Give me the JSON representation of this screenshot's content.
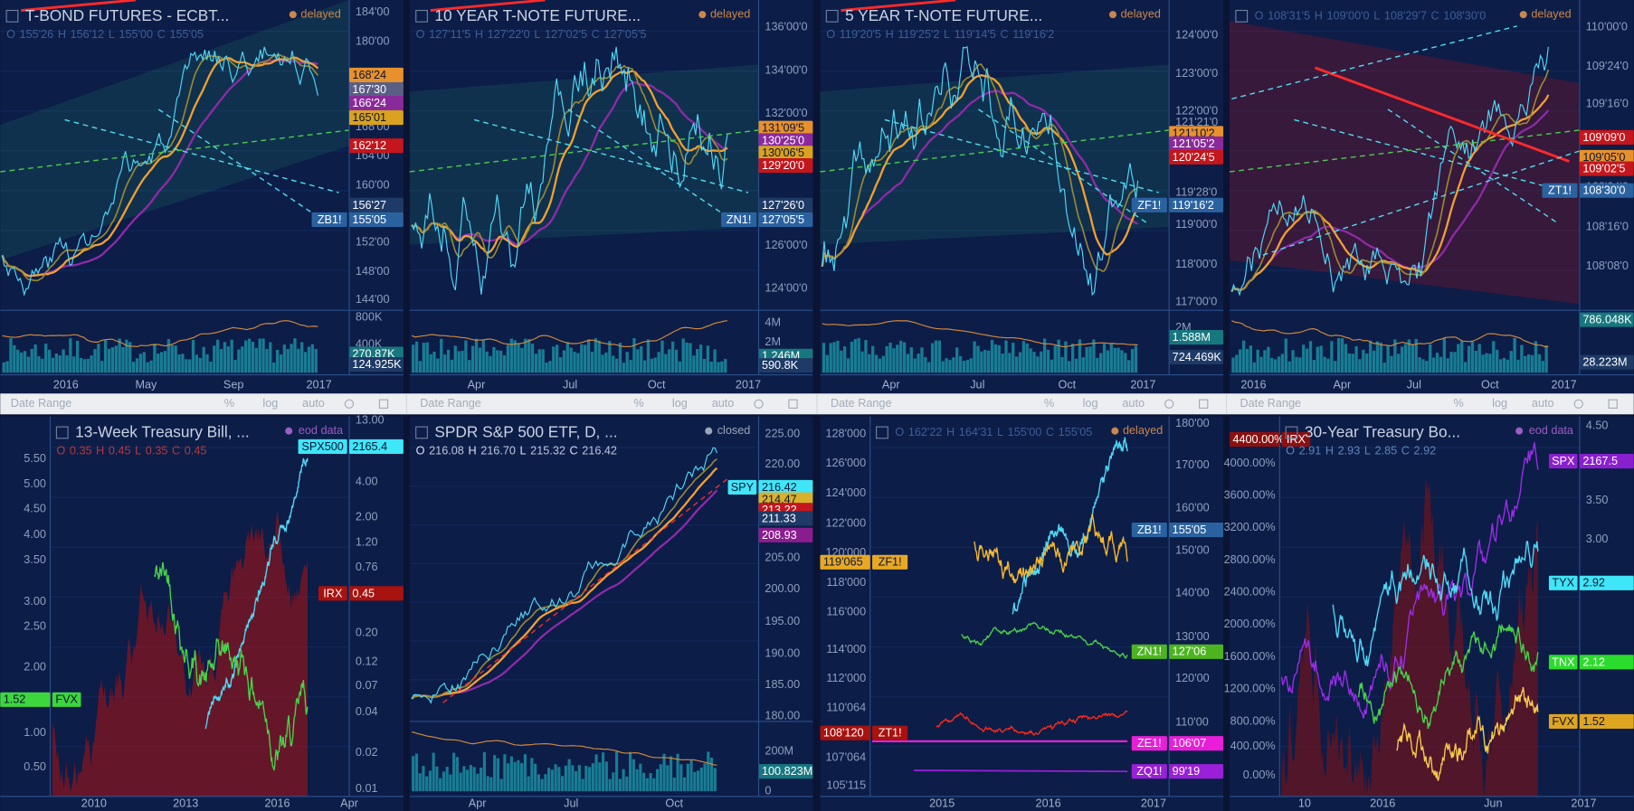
{
  "toolbar": [
    "Date Range",
    "%",
    "log",
    "auto"
  ],
  "panels": [
    {
      "title": "T-BOND FUTURES - ECBT...",
      "status": "delayed",
      "ohlc": [
        "O",
        "155'26",
        "H",
        "156'12",
        "L",
        "155'00",
        "C",
        "155'05"
      ],
      "ticks": [
        "184'00",
        "180'00",
        "168'00",
        "164'00",
        "160'00",
        "156'00",
        "152'00",
        "148'00",
        "144'00"
      ],
      "labels": [
        {
          "text": "168'24",
          "color": "#e8912c"
        },
        {
          "text": "167'30",
          "color": "#5b5f86"
        },
        {
          "text": "166'24",
          "color": "#8a2a9a"
        },
        {
          "text": "165'01",
          "color": "#d9a21f"
        },
        {
          "text": "162'12",
          "color": "#c4161c"
        },
        {
          "text": "156'27",
          "color": "#1e3a66"
        },
        {
          "sym": "ZB1!",
          "text": "155'05",
          "color": "#2a62a0"
        }
      ],
      "vol_ticks": [
        "800K",
        "400K"
      ],
      "vol_labels": [
        "270.87K",
        "124.925K"
      ],
      "x_labels": [
        "2016",
        "May",
        "Sep",
        "2017"
      ]
    },
    {
      "title": "10 YEAR T-NOTE FUTURE...",
      "status": "delayed",
      "ohlc": [
        "O",
        "127'11'5",
        "H",
        "127'22'0",
        "L",
        "127'02'5",
        "C",
        "127'05'5"
      ],
      "ticks": [
        "136'00'0",
        "134'00'0",
        "132'00'0",
        "126'00'0",
        "124'00'0"
      ],
      "labels": [
        {
          "text": "131'09'5",
          "color": "#e8912c"
        },
        {
          "text": "130'25'0",
          "color": "#8a2a9a"
        },
        {
          "text": "130'06'5",
          "color": "#d9a21f"
        },
        {
          "text": "129'20'0",
          "color": "#c4161c"
        },
        {
          "text": "127'26'0",
          "color": "#1e3a66"
        },
        {
          "sym": "ZN1!",
          "text": "127'05'5",
          "color": "#2a62a0"
        }
      ],
      "vol_ticks": [
        "4M",
        "2M"
      ],
      "vol_labels": [
        "1.246M",
        "590.8K"
      ],
      "x_labels": [
        "Apr",
        "Jul",
        "Oct",
        "2017"
      ]
    },
    {
      "title": "5 YEAR T-NOTE FUTURE...",
      "status": "delayed",
      "ohlc": [
        "O",
        "119'20'5",
        "H",
        "119'25'2",
        "L",
        "119'14'5",
        "C",
        "119'16'2"
      ],
      "ticks": [
        "124'00'0",
        "123'00'0",
        "122'00'0",
        "121'21'0",
        "119'28'0",
        "119'00'0",
        "118'00'0",
        "117'00'0"
      ],
      "labels": [
        {
          "text": "121'10'2",
          "color": "#e8912c"
        },
        {
          "text": "121'05'2",
          "color": "#8a2a9a"
        },
        {
          "text": "120'24'5",
          "color": "#c4161c"
        },
        {
          "sym": "ZF1!",
          "text": "119'16'2",
          "color": "#2a62a0"
        }
      ],
      "vol_ticks": [
        "2M"
      ],
      "vol_labels": [
        "1.588M",
        "724.469K"
      ],
      "x_labels": [
        "Apr",
        "Jul",
        "Oct",
        "2017"
      ]
    },
    {
      "status": "delayed",
      "ohlc": [
        "O",
        "108'31'5",
        "H",
        "109'00'0",
        "L",
        "108'29'7",
        "C",
        "108'30'0"
      ],
      "ticks": [
        "110'00'0",
        "109'24'0",
        "109'16'0",
        "108'24'0",
        "108'16'0",
        "108'08'0"
      ],
      "labels": [
        {
          "text": "109'09'0",
          "color": "#c4161c"
        },
        {
          "text": "109'05'0",
          "color": "#e8912c"
        },
        {
          "text": "109'02'5",
          "color": "#c4161c"
        },
        {
          "sym": "ZT1!",
          "text": "108'30'0",
          "color": "#2a62a0"
        }
      ],
      "vol_ticks": [],
      "vol_labels": [
        "786.048K",
        "28.223M"
      ],
      "x_labels": [
        "2016",
        "Apr",
        "Jul",
        "Oct",
        "2017"
      ]
    },
    {
      "title": "13-Week Treasury Bill, ...",
      "status": "eod data",
      "ohlc": [
        "O",
        "0.35",
        "H",
        "0.45",
        "L",
        "0.35",
        "C",
        "0.45"
      ],
      "ticks": [
        "13.00",
        "4.00",
        "2.00",
        "1.20",
        "0.76",
        "0.20",
        "0.12",
        "0.07",
        "0.04",
        "0.02",
        "0.01"
      ],
      "left_ticks": [
        "5.50",
        "5.00",
        "4.50",
        "4.00",
        "3.50",
        "3.00",
        "2.50",
        "2.00",
        "1.50",
        "1.00",
        "0.50"
      ],
      "labels": [
        {
          "sym": "SPX500",
          "text": "2165.4",
          "color": "#3ee6f7"
        },
        {
          "sym": "IRX",
          "text": "0.45",
          "color": "#a8120f"
        },
        {
          "text": "1.52",
          "sym": "FVX",
          "color": "#3dd63d"
        }
      ],
      "x_labels": [
        "2010",
        "2013",
        "2016",
        "Apr"
      ]
    },
    {
      "title": "SPDR S&P 500 ETF, D, ...",
      "status": "closed",
      "ohlc": [
        "O",
        "216.08",
        "H",
        "216.70",
        "L",
        "215.32",
        "C",
        "216.42"
      ],
      "ticks": [
        "225.00",
        "220.00",
        "215.00",
        "205.00",
        "200.00",
        "195.00",
        "190.00",
        "185.00",
        "180.00"
      ],
      "labels": [
        {
          "sym": "SPY",
          "text": "216.42",
          "color": "#3ee6f7"
        },
        {
          "text": "214.47",
          "color": "#d9b02a"
        },
        {
          "text": "213.22",
          "color": "#c4161c"
        },
        {
          "text": "211.33",
          "color": "#1e3a66"
        },
        {
          "text": "208.93",
          "color": "#8a1d8e"
        }
      ],
      "vol_ticks": [
        "200M",
        "0"
      ],
      "vol_labels": [
        "100.823M"
      ],
      "x_labels": [
        "Apr",
        "Jul",
        "Oct"
      ]
    },
    {
      "status": "delayed",
      "ohlc": [
        "O",
        "162'22",
        "H",
        "164'31",
        "L",
        "155'00",
        "C",
        "155'05"
      ],
      "ticks": [
        "180'00",
        "170'00",
        "160'00",
        "150'00",
        "140'00",
        "130'00",
        "120'00",
        "110'00"
      ],
      "left_ticks": [
        "128'000",
        "126'000",
        "124'000",
        "122'000",
        "120'000",
        "118'000",
        "116'000",
        "114'000",
        "112'000",
        "110'064",
        "107'064",
        "105'115"
      ],
      "labels": [
        {
          "sym": "ZB1!",
          "text": "155'05",
          "color": "#2a62a0"
        },
        {
          "text": "119'065",
          "sym": "ZF1!",
          "color": "#e8a824"
        },
        {
          "sym": "ZN1!",
          "text": "127'06",
          "color": "#4bb41f"
        },
        {
          "text": "108'120",
          "sym": "ZT1!",
          "color": "#a8120f"
        },
        {
          "sym": "ZE1!",
          "text": "106'07",
          "color": "#e81ed8"
        },
        {
          "sym": "ZQ1!",
          "text": "99'19",
          "color": "#9a1fd8"
        }
      ],
      "x_labels": [
        "2015",
        "2016",
        "2017"
      ]
    },
    {
      "title": "30-Year Treasury Bo...",
      "status": "eod data",
      "ohlc": [
        "O",
        "2.91",
        "H",
        "2.93",
        "L",
        "2.85",
        "C",
        "2.92"
      ],
      "ticks": [
        "4.50",
        "4.00",
        "3.50",
        "3.00"
      ],
      "left_ticks": [
        "4000.00%",
        "3600.00%",
        "3200.00%",
        "2800.00%",
        "2400.00%",
        "2000.00%",
        "1600.00%",
        "1200.00%",
        "800.00%",
        "400.00%",
        "0.00%"
      ],
      "labels": [
        {
          "text": "4400.00%",
          "sym": "IRX",
          "color": "#8b1010"
        },
        {
          "sym": "SPX",
          "text": "2167.5",
          "color": "#8a1fd0"
        },
        {
          "sym": "TYX",
          "text": "2.92",
          "color": "#3ee6f7"
        },
        {
          "sym": "TNX",
          "text": "2.12",
          "color": "#2cdc2c"
        },
        {
          "sym": "FVX",
          "text": "1.52",
          "color": "#e0a520"
        }
      ],
      "x_labels": [
        "10",
        "2016",
        "Jun",
        "2017"
      ]
    }
  ]
}
